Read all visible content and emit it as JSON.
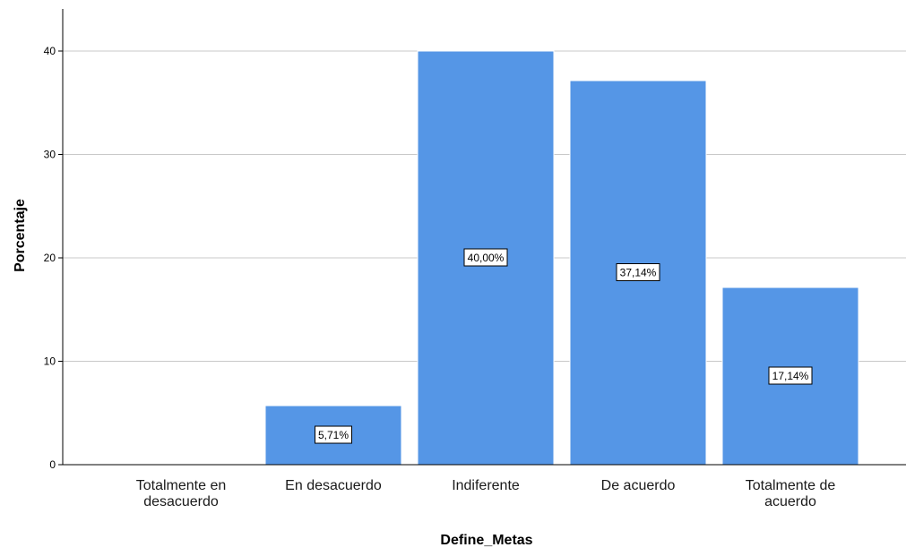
{
  "chart_data": {
    "type": "bar",
    "categories": [
      [
        "Totalmente en",
        "desacuerdo"
      ],
      [
        "En desacuerdo"
      ],
      [
        "Indiferente"
      ],
      [
        "De acuerdo"
      ],
      [
        "Totalmente de",
        "acuerdo"
      ]
    ],
    "values": [
      0,
      5.71,
      40.0,
      37.14,
      17.14
    ],
    "data_labels": [
      "",
      "5,71%",
      "40,00%",
      "37,14%",
      "17,14%"
    ],
    "xlabel": "Define_Metas",
    "ylabel": "Porcentaje",
    "ylim": [
      0,
      40
    ],
    "yticks": [
      0,
      10,
      20,
      30,
      40
    ],
    "grid": true,
    "bar_color": "#5596e6",
    "bar_edge_color": "#ffffff",
    "grid_color": "#c8c8c8"
  }
}
